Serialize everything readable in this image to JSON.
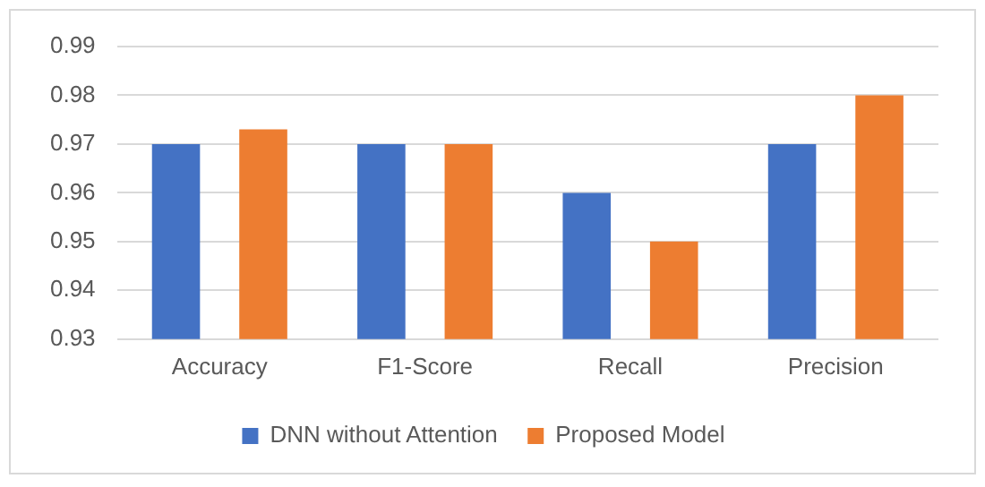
{
  "chart_data": {
    "type": "bar",
    "categories": [
      "Accuracy",
      "F1-Score",
      "Recall",
      "Precision"
    ],
    "series": [
      {
        "name": "DNN without Attention",
        "color": "#4472c4",
        "values": [
          0.97,
          0.97,
          0.96,
          0.97
        ]
      },
      {
        "name": "Proposed Model",
        "color": "#ed7d31",
        "values": [
          0.973,
          0.97,
          0.95,
          0.98
        ]
      }
    ],
    "ylim": [
      0.93,
      0.99
    ],
    "yticks": [
      0.93,
      0.94,
      0.95,
      0.96,
      0.97,
      0.98,
      0.99
    ],
    "grid": "y",
    "legend": "bottom"
  }
}
